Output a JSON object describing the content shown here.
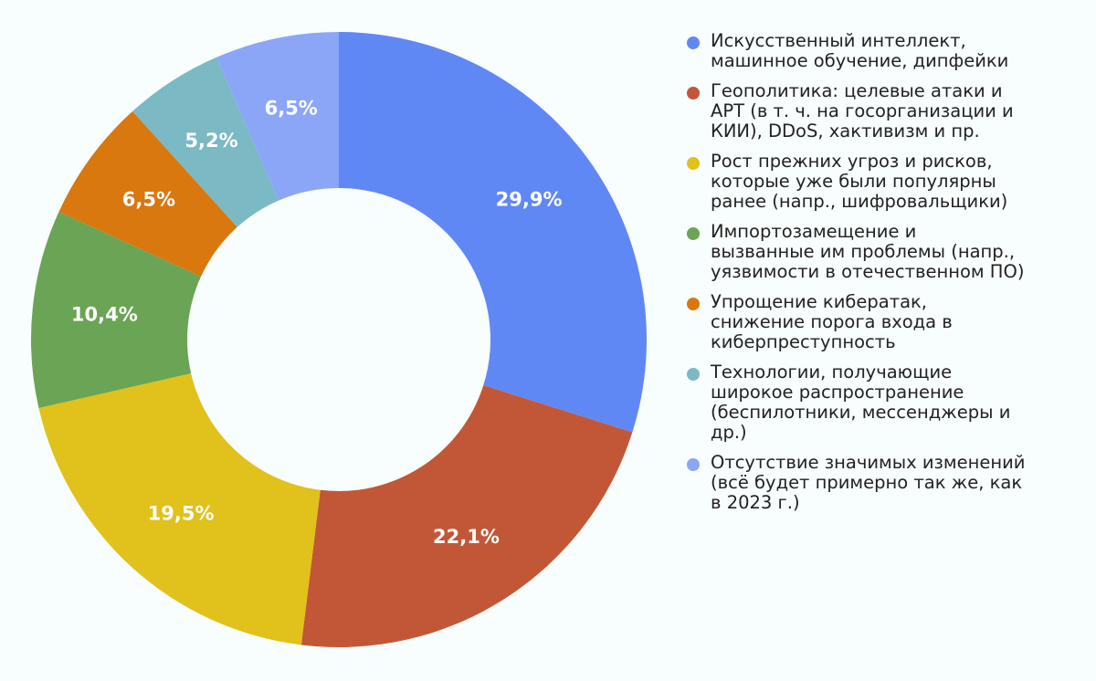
{
  "chart_data": {
    "type": "pie",
    "donut": true,
    "title": "",
    "legend_placement": "right",
    "slices": [
      {
        "label": "Искусственный интеллект,\nмашинное обучение, дипфейки",
        "value": 29.9,
        "value_label": "29,9%",
        "color": "#6088f4"
      },
      {
        "label": "Геополитика: целевые атаки и\nAPT (в т. ч. на госорганизации и\nКИИ), DDoS, хактивизм и пр.",
        "value": 22.1,
        "value_label": "22,1%",
        "color": "#c25737"
      },
      {
        "label": "Рост прежних угроз и рисков,\nкоторые уже были популярны\nранее (напр., шифровальщики)",
        "value": 19.5,
        "value_label": "19,5%",
        "color": "#e1c11c"
      },
      {
        "label": "Импортозамещение и\nвызванные им проблемы (напр.,\nуязвимости в отечественном ПО)",
        "value": 10.4,
        "value_label": "10,4%",
        "color": "#6aa455"
      },
      {
        "label": "Упрощение кибератак,\nснижение порога входа в\nкиберпреступность",
        "value": 6.5,
        "value_label": "6,5%",
        "color": "#d8780f"
      },
      {
        "label": "Технологии, получающие\nширокое распространение\n(беспилотники, мессенджеры и\nдр.)",
        "value": 5.2,
        "value_label": "5,2%",
        "color": "#7bb9c5"
      },
      {
        "label": "Отсутствие значимых изменений\n(всё будет примерно так же, как\nв 2023 г.)",
        "value": 6.5,
        "value_label": "6,5%",
        "color": "#8ba6f7"
      }
    ]
  }
}
